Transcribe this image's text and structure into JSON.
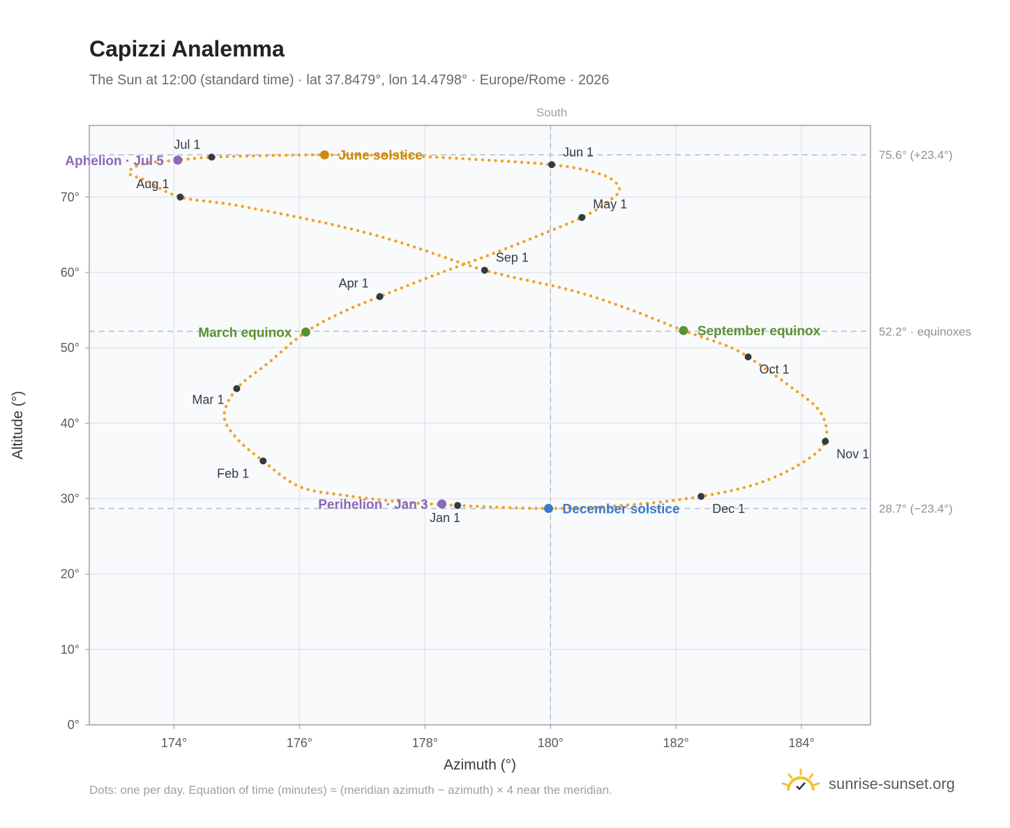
{
  "header": {
    "title": "Capizzi Analemma",
    "subtitle": "The Sun at 12:00 (standard time) · lat 37.8479°, lon 14.4798° · Europe/Rome · 2026"
  },
  "footer": {
    "note": "Dots: one per day. Equation of time (minutes) ≈ (meridian azimuth − azimuth) × 4 near the meridian.",
    "brand": "sunrise-sunset.org"
  },
  "colors": {
    "path": "#f2a21b",
    "month_marker": "#333a42",
    "june_solstice": "#c98a10",
    "december_solstice": "#3b7ac9",
    "equinox": "#5a9132",
    "apsis": "#8d68b8",
    "grid": "#e3e7ec",
    "plot_bg": "#f8fafc",
    "frame": "#9aa3af",
    "reference_line": "#b6c0cc"
  },
  "chart_data": {
    "type": "scatter",
    "xlabel": "Azimuth (°)",
    "ylabel": "Altitude (°)",
    "xlim": [
      172.65,
      185.1
    ],
    "ylim": [
      0,
      79.5
    ],
    "x_ticks": [
      174,
      176,
      178,
      180,
      182,
      184
    ],
    "x_tick_labels": [
      "174°",
      "176°",
      "178°",
      "180°",
      "182°",
      "184°"
    ],
    "y_ticks": [
      0,
      10,
      20,
      30,
      40,
      50,
      60,
      70
    ],
    "y_tick_labels": [
      "0°",
      "10°",
      "20°",
      "30°",
      "40°",
      "50°",
      "60°",
      "70°"
    ],
    "grid": true,
    "meridian": {
      "azimuth": 180,
      "label": "South"
    },
    "reference_lines": [
      {
        "altitude": 75.6,
        "label": "75.6° (+23.4°)"
      },
      {
        "altitude": 52.2,
        "label": "52.2° · equinoxes"
      },
      {
        "altitude": 28.7,
        "label": "28.7° (−23.4°)"
      }
    ],
    "path_points": [
      [
        178.52,
        29.1
      ],
      [
        177.6,
        29.6
      ],
      [
        176.75,
        30.4
      ],
      [
        176.0,
        31.6
      ],
      [
        175.42,
        35.0
      ],
      [
        175.0,
        38.0
      ],
      [
        174.8,
        41.0
      ],
      [
        175.0,
        44.6
      ],
      [
        175.5,
        48.0
      ],
      [
        176.1,
        52.1
      ],
      [
        176.7,
        54.8
      ],
      [
        177.28,
        56.8
      ],
      [
        178.2,
        59.8
      ],
      [
        179.3,
        63.2
      ],
      [
        180.5,
        67.3
      ],
      [
        180.95,
        69.6
      ],
      [
        181.1,
        71.0
      ],
      [
        180.95,
        72.5
      ],
      [
        180.6,
        73.5
      ],
      [
        180.02,
        74.3
      ],
      [
        179.0,
        74.9
      ],
      [
        177.6,
        75.5
      ],
      [
        176.4,
        75.6
      ],
      [
        175.5,
        75.5
      ],
      [
        174.6,
        75.3
      ],
      [
        174.06,
        74.9
      ],
      [
        173.5,
        74.4
      ],
      [
        173.28,
        73.2
      ],
      [
        173.55,
        72.2
      ],
      [
        174.1,
        70.0
      ],
      [
        175.0,
        68.9
      ],
      [
        176.5,
        66.4
      ],
      [
        177.6,
        64.0
      ],
      [
        178.95,
        60.3
      ],
      [
        180.3,
        57.7
      ],
      [
        181.2,
        55.3
      ],
      [
        182.12,
        52.3
      ],
      [
        182.8,
        50.3
      ],
      [
        183.15,
        48.8
      ],
      [
        183.8,
        45.0
      ],
      [
        184.3,
        41.5
      ],
      [
        184.38,
        37.6
      ],
      [
        184.0,
        34.7
      ],
      [
        183.3,
        32.0
      ],
      [
        182.4,
        30.3
      ],
      [
        181.3,
        29.2
      ],
      [
        180.0,
        28.7
      ],
      [
        178.52,
        29.1
      ]
    ],
    "month_markers": [
      {
        "label": "Jan 1",
        "az": 178.52,
        "alt": 29.1
      },
      {
        "label": "Feb 1",
        "az": 175.42,
        "alt": 35.0
      },
      {
        "label": "Mar 1",
        "az": 175.0,
        "alt": 44.6
      },
      {
        "label": "Apr 1",
        "az": 177.28,
        "alt": 56.8
      },
      {
        "label": "May 1",
        "az": 180.5,
        "alt": 67.3
      },
      {
        "label": "Jun 1",
        "az": 180.02,
        "alt": 74.3
      },
      {
        "label": "Jul 1",
        "az": 174.6,
        "alt": 75.3
      },
      {
        "label": "Aug 1",
        "az": 174.1,
        "alt": 70.0
      },
      {
        "label": "Sep 1",
        "az": 178.95,
        "alt": 60.3
      },
      {
        "label": "Oct 1",
        "az": 183.15,
        "alt": 48.8
      },
      {
        "label": "Nov 1",
        "az": 184.38,
        "alt": 37.6
      },
      {
        "label": "Dec 1",
        "az": 182.4,
        "alt": 30.3
      }
    ],
    "events": [
      {
        "label": "June solstice",
        "az": 176.4,
        "alt": 75.6,
        "kind": "june_solstice"
      },
      {
        "label": "December solstice",
        "az": 179.97,
        "alt": 28.7,
        "kind": "december_solstice"
      },
      {
        "label": "March equinox",
        "az": 176.1,
        "alt": 52.1,
        "kind": "equinox"
      },
      {
        "label": "September equinox",
        "az": 182.12,
        "alt": 52.3,
        "kind": "equinox"
      },
      {
        "label": "Aphelion · Jul 5",
        "az": 174.06,
        "alt": 74.9,
        "kind": "apsis"
      },
      {
        "label": "Perihelion · Jan 3",
        "az": 178.27,
        "alt": 29.3,
        "kind": "apsis"
      }
    ]
  }
}
